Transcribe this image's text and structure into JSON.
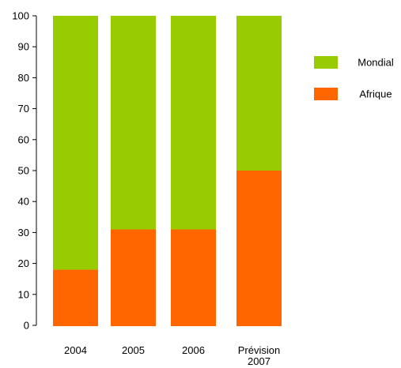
{
  "chart_data": {
    "type": "bar",
    "stacked": true,
    "title": "",
    "xlabel": "",
    "ylabel": "",
    "ylim": [
      0,
      100
    ],
    "yticks": [
      0,
      10,
      20,
      30,
      40,
      50,
      60,
      70,
      80,
      90,
      100
    ],
    "categories": [
      "2004",
      "2005",
      "2006",
      "Prévision 2007"
    ],
    "category_lines": [
      [
        "2004"
      ],
      [
        "2005"
      ],
      [
        "2006"
      ],
      [
        "Prévision",
        "2007"
      ]
    ],
    "series": [
      {
        "name": "Afrique",
        "color": "#ff6600",
        "values": [
          18,
          31,
          31,
          50
        ]
      },
      {
        "name": "Mondial",
        "color": "#99cc00",
        "values": [
          82,
          69,
          69,
          50
        ]
      }
    ],
    "legend": {
      "placement": "top-right",
      "order": [
        "Mondial",
        "Afrique"
      ]
    },
    "grid": false
  }
}
